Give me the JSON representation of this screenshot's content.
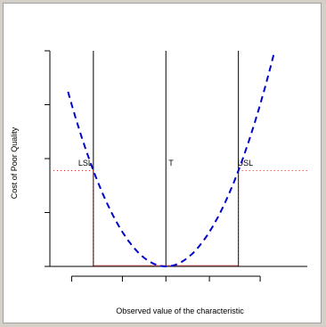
{
  "chart_data": {
    "type": "line",
    "title": "",
    "xlabel": "Observed value of the characteristic",
    "ylabel": "Cost of Poor Quality",
    "xlim": [
      -3.2,
      3.9
    ],
    "ylim": [
      0,
      9
    ],
    "x_ticks": [
      -2.6,
      -1.2,
      0,
      1.2,
      2.6
    ],
    "y_ticks": [
      0,
      2.25,
      4.5,
      6.75,
      9
    ],
    "series": [
      {
        "style": "dashed",
        "color": "#0000cc",
        "curve": "quadratic loss L(x) = k (x - T)^2",
        "k": 1,
        "x": [
          -2.7,
          -2.4,
          -2.0,
          -1.6,
          -1.2,
          -0.8,
          -0.4,
          0,
          0.4,
          0.8,
          1.2,
          1.6,
          2.0,
          2.4,
          2.8,
          3.0
        ],
        "y": [
          7.29,
          5.76,
          4.0,
          2.56,
          1.44,
          0.64,
          0.16,
          0,
          0.16,
          0.64,
          1.44,
          2.56,
          4.0,
          5.76,
          7.84,
          9.0
        ]
      }
    ],
    "vertical_lines": [
      {
        "label": "LSL",
        "x": -2.0
      },
      {
        "label": "T",
        "x": 0
      },
      {
        "label": "USL",
        "x": 2.0
      }
    ],
    "spec_cost_level": 4.0,
    "reference_color": "#dd2222",
    "grid": false,
    "legend": "none"
  }
}
